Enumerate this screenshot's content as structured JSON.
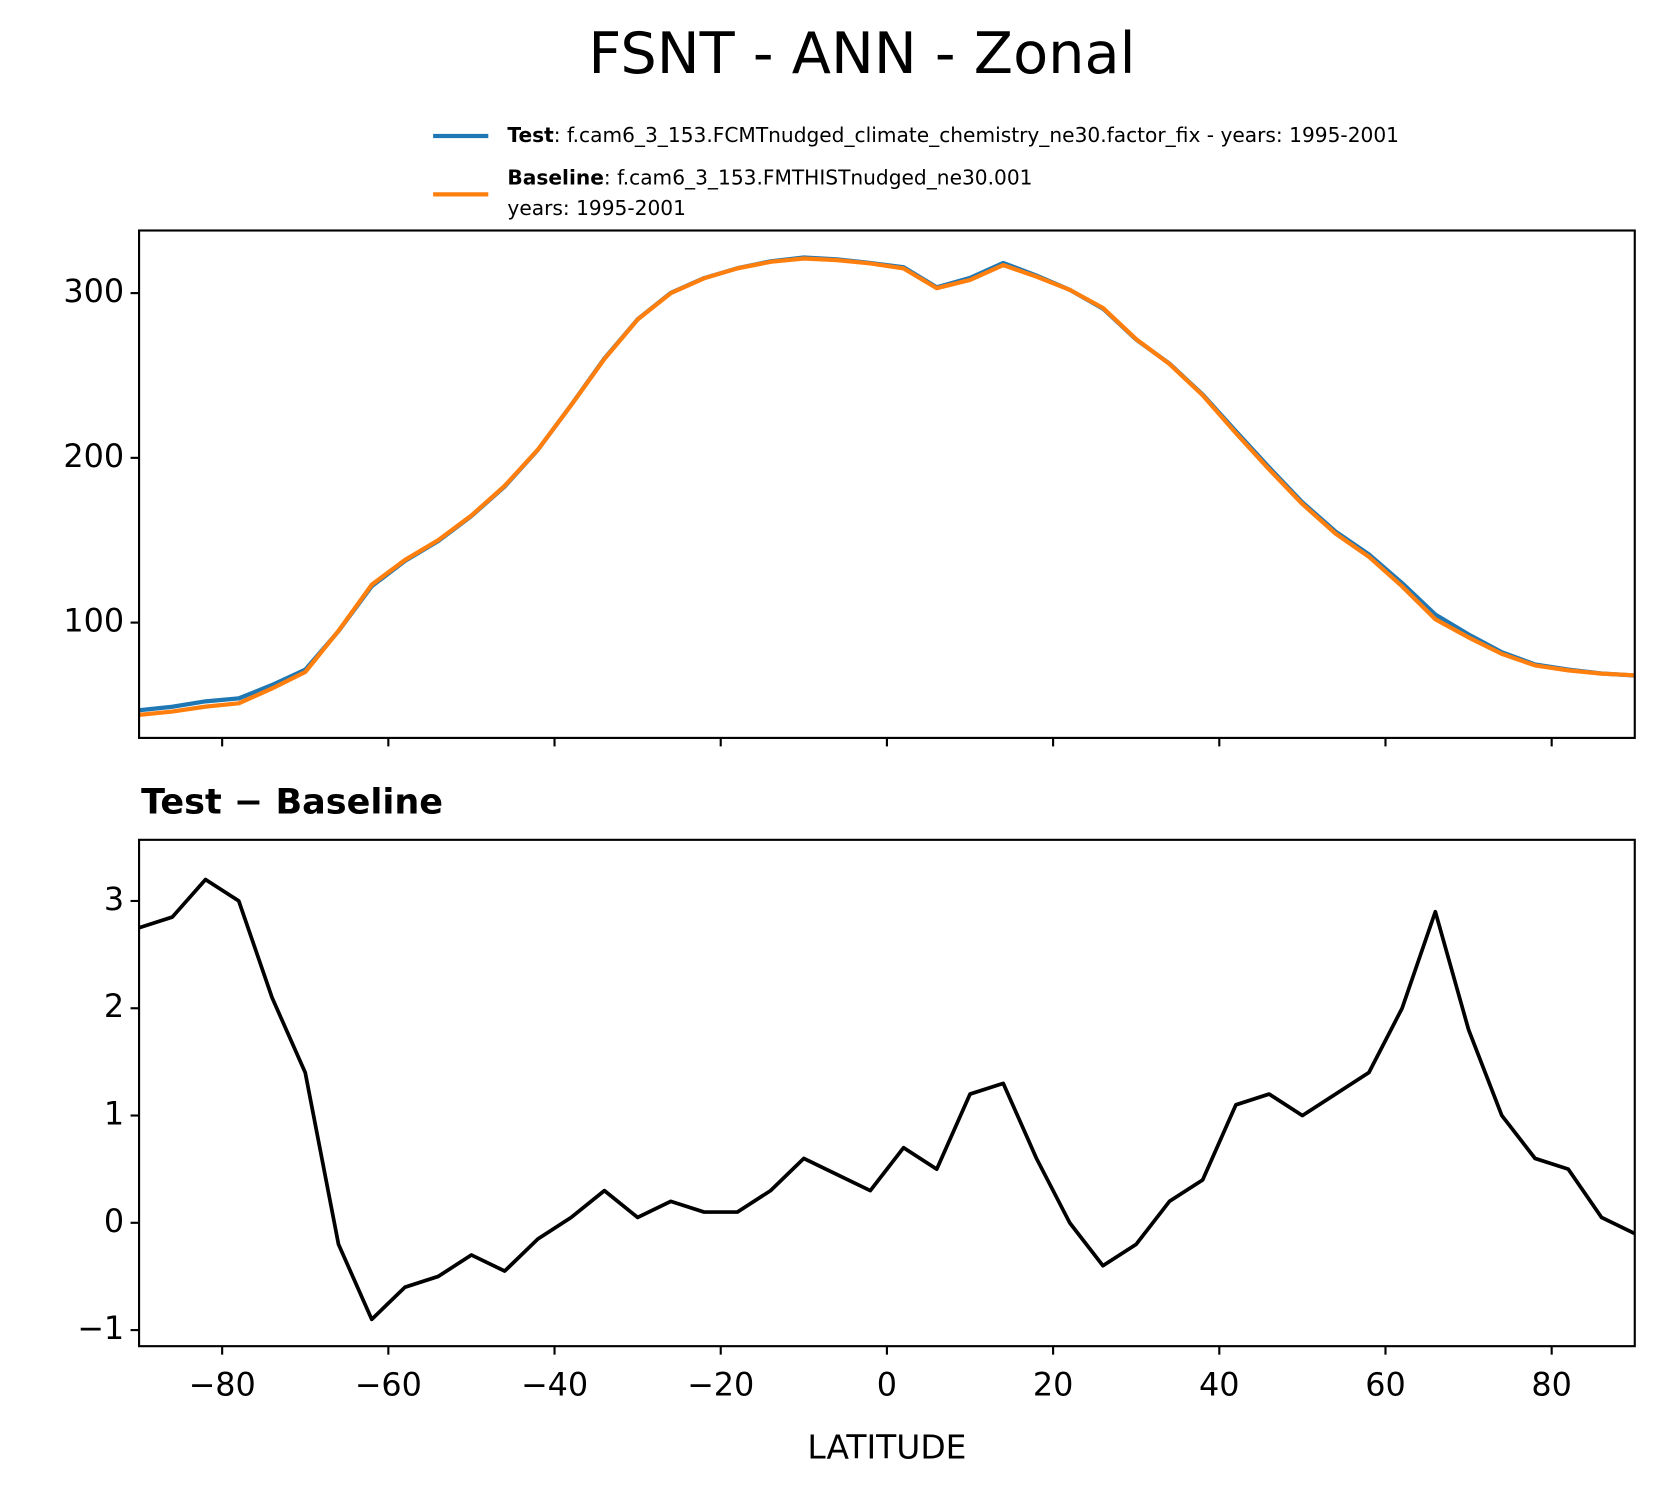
{
  "chart_data": [
    {
      "type": "line",
      "title": "FSNT - ANN - Zonal",
      "x": [
        -90,
        -86,
        -82,
        -78,
        -74,
        -70,
        -66,
        -62,
        -58,
        -54,
        -50,
        -46,
        -42,
        -38,
        -34,
        -30,
        -26,
        -22,
        -18,
        -14,
        -10,
        -6,
        -2,
        2,
        6,
        10,
        14,
        18,
        22,
        26,
        30,
        34,
        38,
        42,
        46,
        50,
        54,
        58,
        62,
        66,
        70,
        74,
        78,
        82,
        86,
        90
      ],
      "series": [
        {
          "name": "Test",
          "color": "#1f77b4",
          "legend_lines": [
            ": f.cam6_3_153.FCMTnudged_climate_chemistry_ne30.factor_fix - years: 1995-2001"
          ],
          "values": [
            46.8,
            48.9,
            52.2,
            54,
            62.1,
            71.4,
            94.8,
            122.1,
            137.4,
            149.5,
            164.7,
            182.6,
            204.9,
            232.1,
            260.3,
            284.1,
            300.2,
            309.1,
            315.1,
            319.3,
            321.6,
            320.5,
            318.3,
            315.7,
            303.5,
            309.2,
            318.3,
            310.6,
            302,
            290.6,
            271.8,
            257.2,
            238.4,
            216.1,
            194.2,
            173,
            155.2,
            141.4,
            124,
            104.9,
            92.8,
            82,
            74.6,
            71.5,
            69.1,
            67.9
          ]
        },
        {
          "name": "Baseline",
          "color": "#ff7f0e",
          "legend_lines": [
            ": f.cam6_3_153.FMTHISTnudged_ne30.001",
            "years: 1995-2001"
          ],
          "values": [
            44,
            46,
            49,
            51,
            60,
            70,
            95,
            123,
            138,
            150,
            165,
            183,
            205,
            232,
            260,
            284,
            300,
            309,
            315,
            319,
            321,
            320,
            318,
            315,
            303,
            308,
            317,
            310,
            302,
            291,
            272,
            257,
            238,
            215,
            193,
            172,
            154,
            140,
            122,
            102,
            91,
            81,
            74,
            71,
            69,
            68
          ]
        }
      ],
      "xlim": [
        -90,
        90
      ],
      "xticks": [
        -80,
        -60,
        -40,
        -20,
        0,
        20,
        40,
        60,
        80
      ],
      "ylim": [
        30,
        338
      ],
      "yticks": [
        100,
        200,
        300
      ]
    },
    {
      "type": "line",
      "title": "Test − Baseline",
      "xlabel": "LATITUDE",
      "x": [
        -90,
        -86,
        -82,
        -78,
        -74,
        -70,
        -66,
        -62,
        -58,
        -54,
        -50,
        -46,
        -42,
        -38,
        -34,
        -30,
        -26,
        -22,
        -18,
        -14,
        -10,
        -6,
        -2,
        2,
        6,
        10,
        14,
        18,
        22,
        26,
        30,
        34,
        38,
        42,
        46,
        50,
        54,
        58,
        62,
        66,
        70,
        74,
        78,
        82,
        86,
        90
      ],
      "series": [
        {
          "color": "#000000",
          "values": [
            2.75,
            2.85,
            3.2,
            3.0,
            2.1,
            1.4,
            -0.2,
            -0.9,
            -0.6,
            -0.5,
            -0.3,
            -0.45,
            -0.15,
            0.05,
            0.3,
            0.05,
            0.2,
            0.1,
            0.1,
            0.3,
            0.6,
            0.45,
            0.3,
            0.7,
            0.5,
            1.2,
            1.3,
            0.6,
            0,
            -0.4,
            -0.2,
            0.2,
            0.4,
            1.1,
            1.2,
            1.0,
            1.2,
            1.4,
            2.0,
            2.9,
            1.8,
            1.0,
            0.6,
            0.5,
            0.05,
            -0.1
          ]
        }
      ],
      "xlim": [
        -90,
        90
      ],
      "xticks": [
        {
          "value": -80,
          "label": "−80"
        },
        {
          "value": -60,
          "label": "−60"
        },
        {
          "value": -40,
          "label": "−40"
        },
        {
          "value": -20,
          "label": "−20"
        },
        0,
        20,
        40,
        60,
        80
      ],
      "ylim": [
        -1.15,
        3.57
      ],
      "yticks": [
        {
          "value": -1,
          "label": "−1"
        },
        0,
        1,
        2,
        3
      ]
    }
  ]
}
